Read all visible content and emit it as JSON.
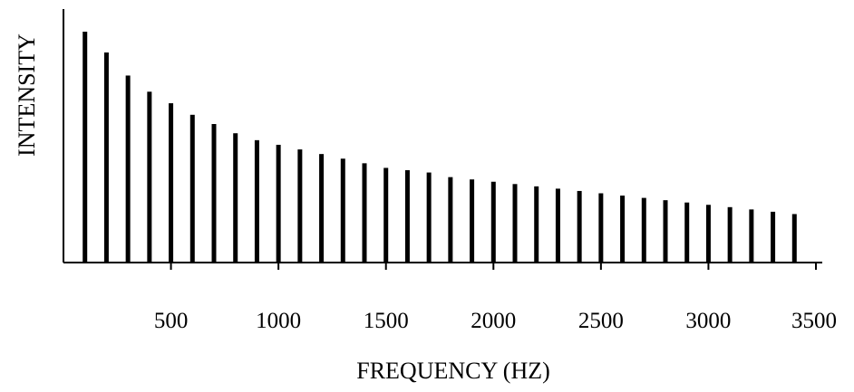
{
  "chart_data": {
    "type": "bar",
    "title": "",
    "xlabel": "FREQUENCY (HZ)",
    "ylabel": "INTENSITY",
    "xlim": [
      0,
      3500
    ],
    "x_ticks": [
      "500",
      "1000",
      "1500",
      "2000",
      "2500",
      "3000",
      "3500"
    ],
    "y_ticks": [],
    "grid": false,
    "legend": "none",
    "bar_color": "#000000",
    "y_units": "relative (0–1)",
    "series": [
      {
        "x": [
          100,
          200,
          300,
          400,
          500,
          600,
          700,
          800,
          900,
          1000,
          1100,
          1200,
          1300,
          1400,
          1500,
          1600,
          1700,
          1800,
          1900,
          2000,
          2100,
          2200,
          2300,
          2400,
          2500,
          2600,
          2700,
          2800,
          2900,
          3000,
          3100,
          3200,
          3300,
          3400
        ],
        "values": [
          1.0,
          0.91,
          0.81,
          0.74,
          0.69,
          0.64,
          0.6,
          0.56,
          0.53,
          0.51,
          0.49,
          0.47,
          0.45,
          0.43,
          0.41,
          0.4,
          0.39,
          0.37,
          0.36,
          0.35,
          0.34,
          0.33,
          0.32,
          0.31,
          0.3,
          0.29,
          0.28,
          0.27,
          0.26,
          0.25,
          0.24,
          0.23,
          0.22,
          0.21
        ]
      }
    ]
  }
}
